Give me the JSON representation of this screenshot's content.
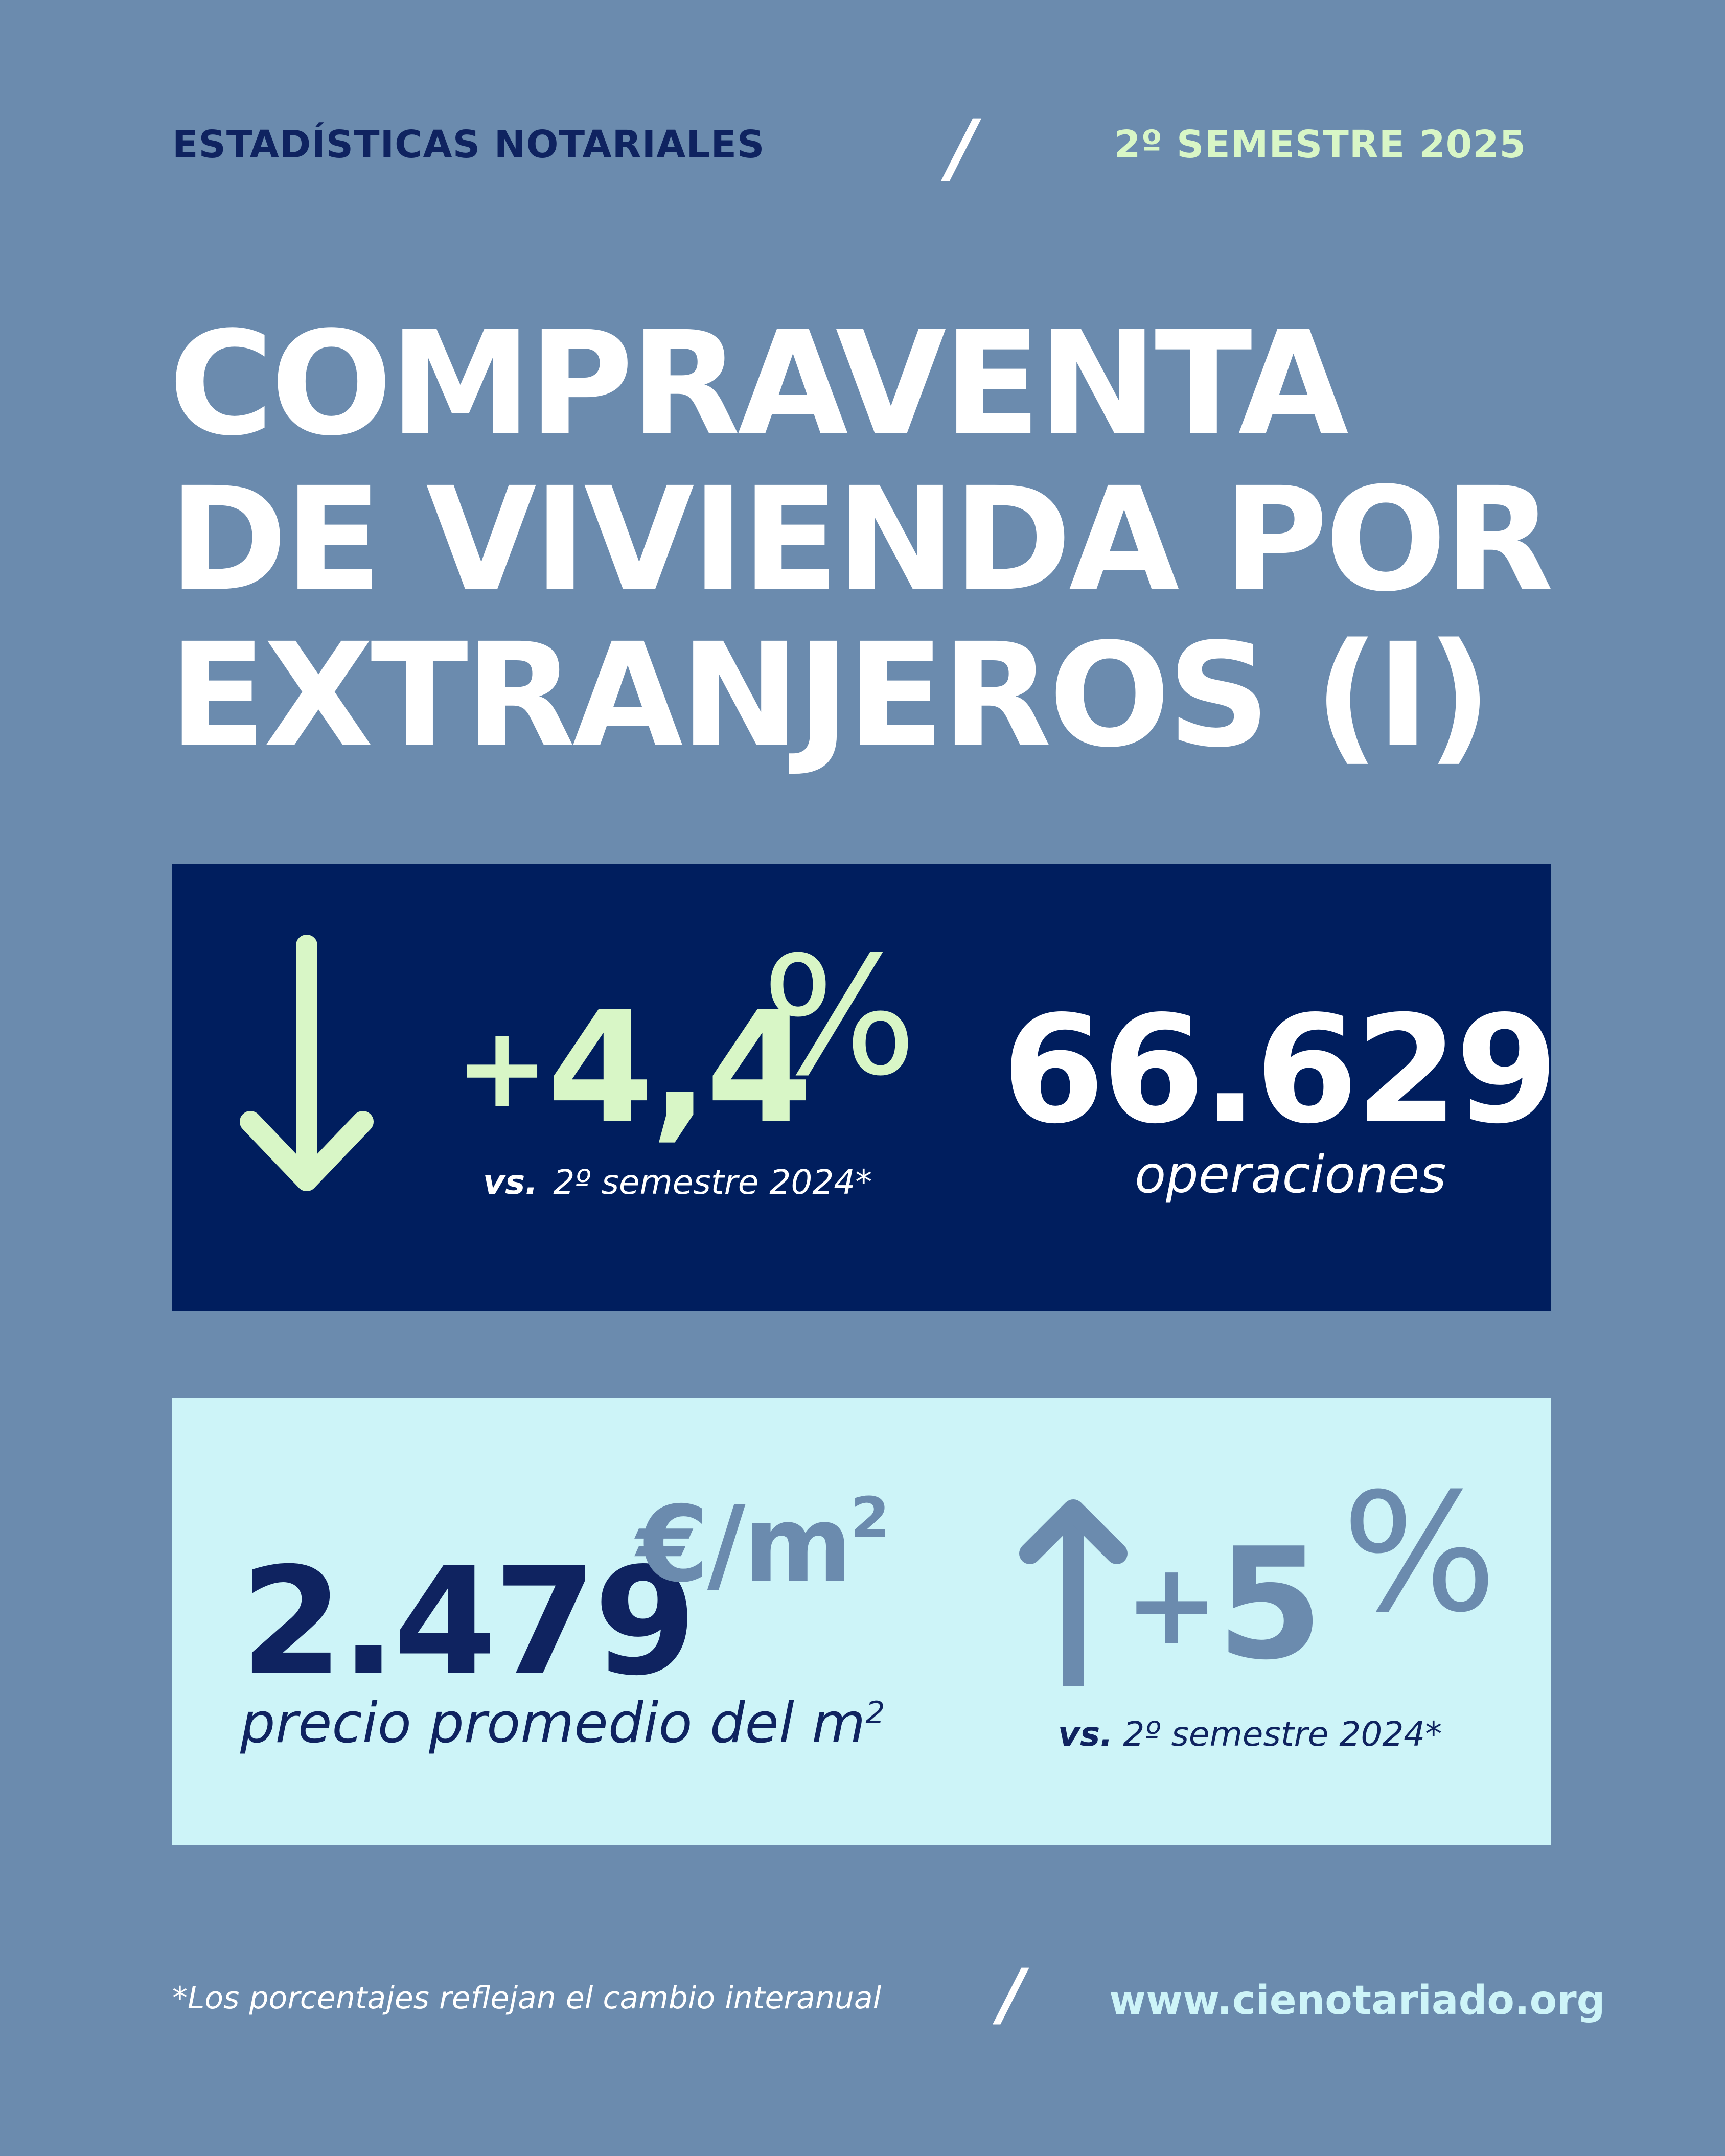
{
  "header": {
    "left": "ESTADÍSTICAS NOTARIALES",
    "separator": "/",
    "right": "2º SEMESTRE 2025"
  },
  "title": {
    "line1": "COMPRAVENTA",
    "line2": "DE VIVIENDA POR",
    "line3": "EXTRANJEROS (I)"
  },
  "operations_panel": {
    "arrow_icon": "arrow-down-icon",
    "change_sign": "+",
    "change_value": "4,4",
    "percent_symbol": "%",
    "comparison_prefix": "vs.",
    "comparison_text": "2º semestre 2024*",
    "count": "66.629",
    "count_label": "operaciones"
  },
  "price_panel": {
    "price": "2.479",
    "unit": "€/m",
    "unit_exponent": "2",
    "price_label": "precio promedio del m",
    "price_label_exponent": "2",
    "arrow_icon": "arrow-up-icon",
    "change_sign": "+",
    "change_value": "5",
    "percent_symbol": "%",
    "comparison_prefix": "vs.",
    "comparison_text": "2º semestre 2024*"
  },
  "footer": {
    "note": "*Los porcentajes reflejan el cambio interanual",
    "separator": "/",
    "url": "www.cienotariado.org"
  },
  "colors": {
    "background": "#6b8bae",
    "navy": "#0f2360",
    "panel_dark": "#001e5e",
    "panel_light": "#cdf4f8",
    "mint": "#d8f6c6",
    "white": "#ffffff"
  }
}
